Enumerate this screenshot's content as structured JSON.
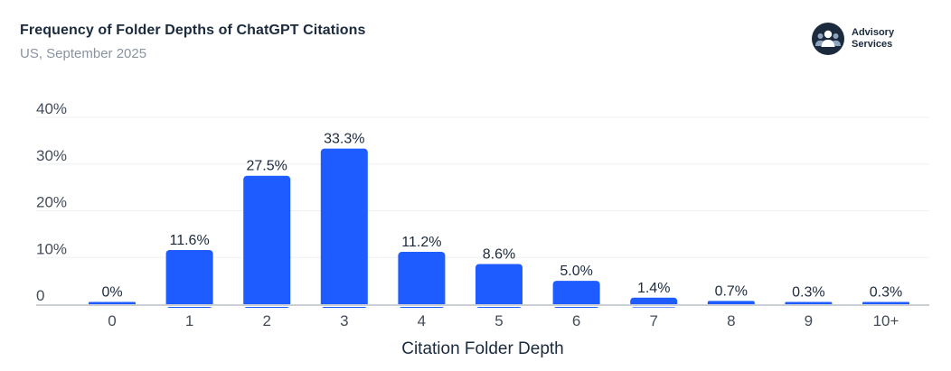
{
  "header": {
    "title": "Frequency of Folder Depths of ChatGPT Citations",
    "subtitle": "US, September 2025"
  },
  "brand": {
    "name": "Advisory Services",
    "icon": "people-group-icon"
  },
  "colors": {
    "bar": "#1f5cff",
    "title": "#1b2a3d",
    "subtitle": "#8a93a0",
    "axis_text": "#444d5a",
    "grid": "#eef0f3",
    "baseline": "#b9c0c9"
  },
  "chart_data": {
    "type": "bar",
    "title": "",
    "xlabel": "Citation Folder Depth",
    "ylabel": "",
    "categories": [
      "0",
      "1",
      "2",
      "3",
      "4",
      "5",
      "6",
      "7",
      "8",
      "9",
      "10+"
    ],
    "values": [
      0,
      11.6,
      27.5,
      33.3,
      11.2,
      8.6,
      5.0,
      1.4,
      0.7,
      0.3,
      0.3
    ],
    "data_labels": [
      "0%",
      "11.6%",
      "27.5%",
      "33.3%",
      "11.2%",
      "8.6%",
      "5.0%",
      "1.4%",
      "0.7%",
      "0.3%",
      "0.3%"
    ],
    "yticks": [
      0,
      10,
      20,
      30,
      40
    ],
    "ytick_labels": [
      "0",
      "10%",
      "20%",
      "30%",
      "40%"
    ],
    "ylim": [
      0,
      40
    ],
    "grid": true,
    "legend": "none"
  }
}
